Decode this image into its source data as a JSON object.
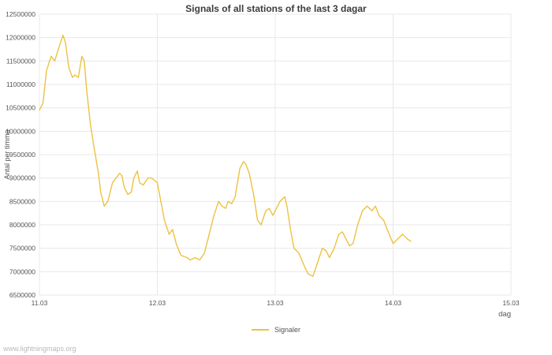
{
  "watermark": "www.lightningmaps.org",
  "colors": {
    "series": "#edc240",
    "grid": "#e8e8e8",
    "tick_text": "#545454",
    "title_text": "#3c3c3c",
    "watermark_text": "#b9b9b9"
  },
  "chart_data": {
    "type": "line",
    "title": "Signals of all stations of the last 3 dagar",
    "xlabel": "dag",
    "ylabel": "Antal per timma",
    "xlim": [
      11,
      15
    ],
    "ylim": [
      6500000,
      12500000
    ],
    "grid": true,
    "legend_position": "bottom-center",
    "x_ticks": {
      "values": [
        11,
        12,
        13,
        14,
        15
      ],
      "labels": [
        "11.03",
        "12.03",
        "13.03",
        "14.03",
        "15.03"
      ]
    },
    "y_ticks": {
      "values": [
        6500000,
        7000000,
        7500000,
        8000000,
        8500000,
        9000000,
        9500000,
        10000000,
        10500000,
        11000000,
        11500000,
        12000000,
        12500000
      ],
      "labels": [
        "6500000",
        "7000000",
        "7500000",
        "8000000",
        "8500000",
        "9000000",
        "9500000",
        "10000000",
        "10500000",
        "11000000",
        "11500000",
        "12000000",
        "12500000"
      ]
    },
    "series": [
      {
        "name": "Signaler",
        "x": [
          11.0,
          11.03,
          11.06,
          11.1,
          11.13,
          11.16,
          11.2,
          11.22,
          11.25,
          11.28,
          11.3,
          11.33,
          11.36,
          11.38,
          11.4,
          11.43,
          11.46,
          11.48,
          11.5,
          11.52,
          11.55,
          11.58,
          11.62,
          11.65,
          11.68,
          11.7,
          11.72,
          11.75,
          11.78,
          11.8,
          11.83,
          11.85,
          11.88,
          11.92,
          11.95,
          12.0,
          12.03,
          12.06,
          12.1,
          12.13,
          12.16,
          12.2,
          12.25,
          12.28,
          12.32,
          12.36,
          12.4,
          12.44,
          12.48,
          12.52,
          12.55,
          12.58,
          12.6,
          12.63,
          12.66,
          12.7,
          12.73,
          12.75,
          12.78,
          12.82,
          12.85,
          12.88,
          12.92,
          12.95,
          12.98,
          13.0,
          13.04,
          13.08,
          13.1,
          13.13,
          13.16,
          13.2,
          13.25,
          13.28,
          13.32,
          13.36,
          13.4,
          13.43,
          13.46,
          13.5,
          13.54,
          13.57,
          13.6,
          13.63,
          13.66,
          13.7,
          13.74,
          13.78,
          13.82,
          13.85,
          13.88,
          13.92,
          13.95,
          14.0,
          14.04,
          14.08,
          14.12,
          14.15
        ],
        "y": [
          10450000,
          10600000,
          11300000,
          11600000,
          11500000,
          11750000,
          12050000,
          11900000,
          11350000,
          11150000,
          11200000,
          11150000,
          11600000,
          11500000,
          10900000,
          10200000,
          9700000,
          9400000,
          9100000,
          8700000,
          8400000,
          8500000,
          8900000,
          9000000,
          9100000,
          9050000,
          8800000,
          8650000,
          8700000,
          9000000,
          9150000,
          8900000,
          8850000,
          9000000,
          9000000,
          8900000,
          8500000,
          8100000,
          7800000,
          7900000,
          7600000,
          7350000,
          7300000,
          7250000,
          7300000,
          7250000,
          7400000,
          7800000,
          8200000,
          8500000,
          8400000,
          8350000,
          8500000,
          8450000,
          8600000,
          9200000,
          9350000,
          9300000,
          9100000,
          8600000,
          8100000,
          8000000,
          8300000,
          8350000,
          8200000,
          8300000,
          8500000,
          8600000,
          8400000,
          7900000,
          7500000,
          7400000,
          7100000,
          6950000,
          6900000,
          7200000,
          7500000,
          7450000,
          7300000,
          7500000,
          7800000,
          7850000,
          7700000,
          7550000,
          7600000,
          8000000,
          8300000,
          8400000,
          8300000,
          8400000,
          8200000,
          8100000,
          7900000,
          7600000,
          7700000,
          7800000,
          7700000,
          7650000
        ]
      }
    ]
  }
}
